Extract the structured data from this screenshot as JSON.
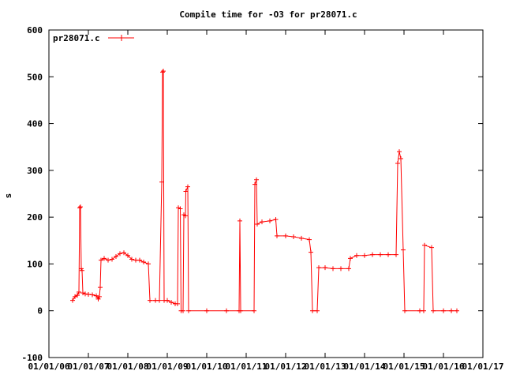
{
  "chart_data": {
    "type": "line",
    "title": "Compile time for -O3 for pr28071.c",
    "xlabel": "",
    "ylabel": "s",
    "ylim": [
      -100,
      600
    ],
    "yticks": [
      -100,
      0,
      100,
      200,
      300,
      400,
      500,
      600
    ],
    "xlim": [
      2006.0,
      2017.0
    ],
    "x_tick_values": [
      2006,
      2007,
      2008,
      2009,
      2010,
      2011,
      2012,
      2013,
      2014,
      2015,
      2016,
      2017
    ],
    "x_tick_labels": [
      "01/01/06",
      "01/01/07",
      "01/01/08",
      "01/01/09",
      "01/01/10",
      "01/01/11",
      "01/01/12",
      "01/01/13",
      "01/01/14",
      "01/01/15",
      "01/01/16",
      "01/01/17"
    ],
    "grid": false,
    "legend_position": "top-left",
    "color": "#ff0000",
    "series": [
      {
        "name": "pr28071.c",
        "points": [
          [
            2006.6,
            22
          ],
          [
            2006.66,
            30
          ],
          [
            2006.72,
            33
          ],
          [
            2006.76,
            40
          ],
          [
            2006.78,
            220
          ],
          [
            2006.8,
            222
          ],
          [
            2006.82,
            90
          ],
          [
            2006.84,
            86
          ],
          [
            2006.86,
            38
          ],
          [
            2006.92,
            36
          ],
          [
            2007.0,
            35
          ],
          [
            2007.1,
            34
          ],
          [
            2007.2,
            32
          ],
          [
            2007.25,
            25
          ],
          [
            2007.28,
            30
          ],
          [
            2007.3,
            50
          ],
          [
            2007.32,
            108
          ],
          [
            2007.4,
            112
          ],
          [
            2007.5,
            108
          ],
          [
            2007.6,
            110
          ],
          [
            2007.7,
            116
          ],
          [
            2007.8,
            122
          ],
          [
            2007.9,
            124
          ],
          [
            2008.0,
            118
          ],
          [
            2008.1,
            110
          ],
          [
            2008.2,
            108
          ],
          [
            2008.3,
            108
          ],
          [
            2008.4,
            104
          ],
          [
            2008.52,
            100
          ],
          [
            2008.56,
            22
          ],
          [
            2008.7,
            22
          ],
          [
            2008.8,
            22
          ],
          [
            2008.86,
            275
          ],
          [
            2008.88,
            510
          ],
          [
            2008.9,
            512
          ],
          [
            2008.92,
            22
          ],
          [
            2009.0,
            22
          ],
          [
            2009.1,
            18
          ],
          [
            2009.2,
            15
          ],
          [
            2009.26,
            15
          ],
          [
            2009.28,
            220
          ],
          [
            2009.33,
            218
          ],
          [
            2009.35,
            0
          ],
          [
            2009.4,
            0
          ],
          [
            2009.42,
            205
          ],
          [
            2009.46,
            203
          ],
          [
            2009.47,
            255
          ],
          [
            2009.52,
            265
          ],
          [
            2009.54,
            0
          ],
          [
            2010.0,
            0
          ],
          [
            2010.5,
            0
          ],
          [
            2010.82,
            0
          ],
          [
            2010.84,
            192
          ],
          [
            2010.86,
            0
          ],
          [
            2011.2,
            0
          ],
          [
            2011.22,
            270
          ],
          [
            2011.26,
            280
          ],
          [
            2011.28,
            185
          ],
          [
            2011.4,
            190
          ],
          [
            2011.6,
            192
          ],
          [
            2011.75,
            195
          ],
          [
            2011.78,
            160
          ],
          [
            2012.0,
            160
          ],
          [
            2012.2,
            158
          ],
          [
            2012.4,
            155
          ],
          [
            2012.6,
            152
          ],
          [
            2012.64,
            125
          ],
          [
            2012.68,
            0
          ],
          [
            2012.8,
            0
          ],
          [
            2012.84,
            92
          ],
          [
            2013.0,
            92
          ],
          [
            2013.2,
            90
          ],
          [
            2013.4,
            90
          ],
          [
            2013.6,
            90
          ],
          [
            2013.64,
            112
          ],
          [
            2013.8,
            118
          ],
          [
            2014.0,
            118
          ],
          [
            2014.2,
            120
          ],
          [
            2014.4,
            120
          ],
          [
            2014.6,
            120
          ],
          [
            2014.8,
            120
          ],
          [
            2014.84,
            315
          ],
          [
            2014.88,
            340
          ],
          [
            2014.92,
            325
          ],
          [
            2014.98,
            130
          ],
          [
            2015.02,
            0
          ],
          [
            2015.4,
            0
          ],
          [
            2015.5,
            0
          ],
          [
            2015.52,
            140
          ],
          [
            2015.7,
            135
          ],
          [
            2015.74,
            0
          ],
          [
            2016.0,
            0
          ],
          [
            2016.2,
            0
          ],
          [
            2016.34,
            0
          ]
        ]
      }
    ]
  }
}
